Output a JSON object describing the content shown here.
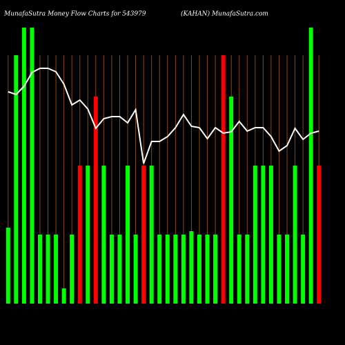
{
  "chart_data": {
    "type": "bar",
    "title": "MunafaSutra  Money Flow  Charts for 543979",
    "subtitle": "(KAHAN) MunafaSutra.com",
    "ylim": [
      0,
      400
    ],
    "values": [
      110,
      360,
      400,
      400,
      100,
      100,
      100,
      22,
      100,
      200,
      200,
      300,
      200,
      100,
      100,
      200,
      100,
      200,
      200,
      100,
      100,
      100,
      100,
      105,
      100,
      100,
      100,
      360,
      300,
      100,
      100,
      200,
      200,
      200,
      100,
      100,
      200,
      100,
      400,
      200
    ],
    "colors": [
      "#00ff00",
      "#00ff00",
      "#00ff00",
      "#00ff00",
      "#00ff00",
      "#00ff00",
      "#00ff00",
      "#00ff00",
      "#00ff00",
      "#ff0000",
      "#00ff00",
      "#ff0000",
      "#00ff00",
      "#00ff00",
      "#00ff00",
      "#00ff00",
      "#00ff00",
      "#ff0000",
      "#00ff00",
      "#00ff00",
      "#00ff00",
      "#00ff00",
      "#00ff00",
      "#00ff00",
      "#00ff00",
      "#00ff00",
      "#00ff00",
      "#ff0000",
      "#00ff00",
      "#00ff00",
      "#00ff00",
      "#00ff00",
      "#00ff00",
      "#00ff00",
      "#00ff00",
      "#00ff00",
      "#00ff00",
      "#00ff00",
      "#00ff00",
      "#ff0000"
    ],
    "line": {
      "color": "#ffffff",
      "values": [
        307,
        303,
        315,
        335,
        341,
        341,
        336,
        318,
        288,
        295,
        282,
        254,
        268,
        271,
        271,
        262,
        281,
        203,
        235,
        235,
        242,
        255,
        274,
        257,
        255,
        239,
        255,
        247,
        249,
        264,
        250,
        255,
        255,
        242,
        221,
        229,
        254,
        238,
        247,
        250
      ]
    },
    "gridcolor": "#8b4a12"
  }
}
